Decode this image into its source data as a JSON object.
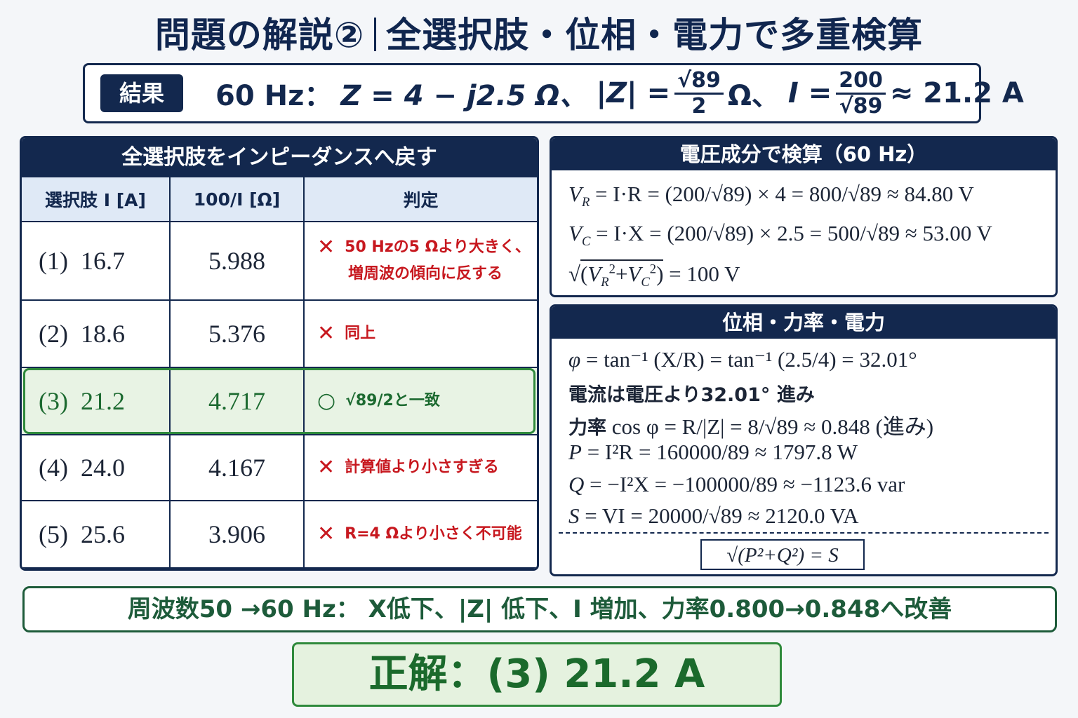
{
  "title": {
    "left": "問題の解説②",
    "right": "全選択肢・位相・電力で多重検算"
  },
  "result": {
    "tag": "結果",
    "freq": "60 Hz：",
    "Z": "Z = 4 − j2.5 Ω、",
    "absZ": "|Z| =",
    "absZ_num": "√89",
    "absZ_den": "2",
    "absZ_unit": "Ω、",
    "I": "I =",
    "I_num": "200",
    "I_den": "√89",
    "I_val": "≈ 21.2 A"
  },
  "table": {
    "heading": "全選択肢をインピーダンスへ戻す",
    "columns": [
      "選択肢 I [A]",
      "100/I [Ω]",
      "判定"
    ],
    "rows": [
      {
        "option": "(1)",
        "current": "16.7",
        "impedance": "5.988",
        "mark": "✕",
        "verdict": "50 Hzの5 Ωより大きく、",
        "verdict2": "増周波の傾向に反する"
      },
      {
        "option": "(2)",
        "current": "18.6",
        "impedance": "5.376",
        "mark": "✕",
        "verdict": "同上",
        "verdict2": ""
      },
      {
        "option": "(3)",
        "current": "21.2",
        "impedance": "4.717",
        "mark": "○",
        "verdict": "√89/2と一致",
        "verdict2": ""
      },
      {
        "option": "(4)",
        "current": "24.0",
        "impedance": "4.167",
        "mark": "✕",
        "verdict": "計算値より小さすぎる",
        "verdict2": ""
      },
      {
        "option": "(5)",
        "current": "25.6",
        "impedance": "3.906",
        "mark": "✕",
        "verdict": "R=4 Ωより小さく不可能",
        "verdict2": ""
      }
    ]
  },
  "voltage": {
    "heading": "電圧成分で検算（60 Hz）",
    "vr": "= I·R = (200/√89) × 4 = 800/√89 ≈ 84.80 V",
    "vc": "= I·X = (200/√89) × 2.5 = 500/√89 ≈ 53.00 V",
    "vsum": "= 100 V"
  },
  "power": {
    "heading": "位相・力率・電力",
    "phi": "= tan⁻¹ (X/R) = tan⁻¹ (2.5/4) = 32.01°",
    "lead": "電流は電圧より32.01° 進み",
    "pf_label": "力率",
    "pf": "cos φ = R/|Z| = 8/√89 ≈ 0.848 (進み)",
    "p": "= I²R = 160000/89 ≈ 1797.8 W",
    "q": "= −I²X = −100000/89 ≈ −1123.6 var",
    "s": "= VI = 20000/√89 ≈ 2120.0 VA",
    "check": "√(P²+Q²) = S"
  },
  "summary": "周波数50 →60 Hz： X低下、|Z| 低下、I 増加、力率0.800→0.848へ改善",
  "answer": "正解：(3) 21.2 A",
  "colors": {
    "navy": "#13284e",
    "header_fill": "#dfe9f6",
    "wrong": "#c7181f",
    "correct": "#1c6a30",
    "correct_fill": "#e8f3e4",
    "summary": "#1d5b3a"
  }
}
